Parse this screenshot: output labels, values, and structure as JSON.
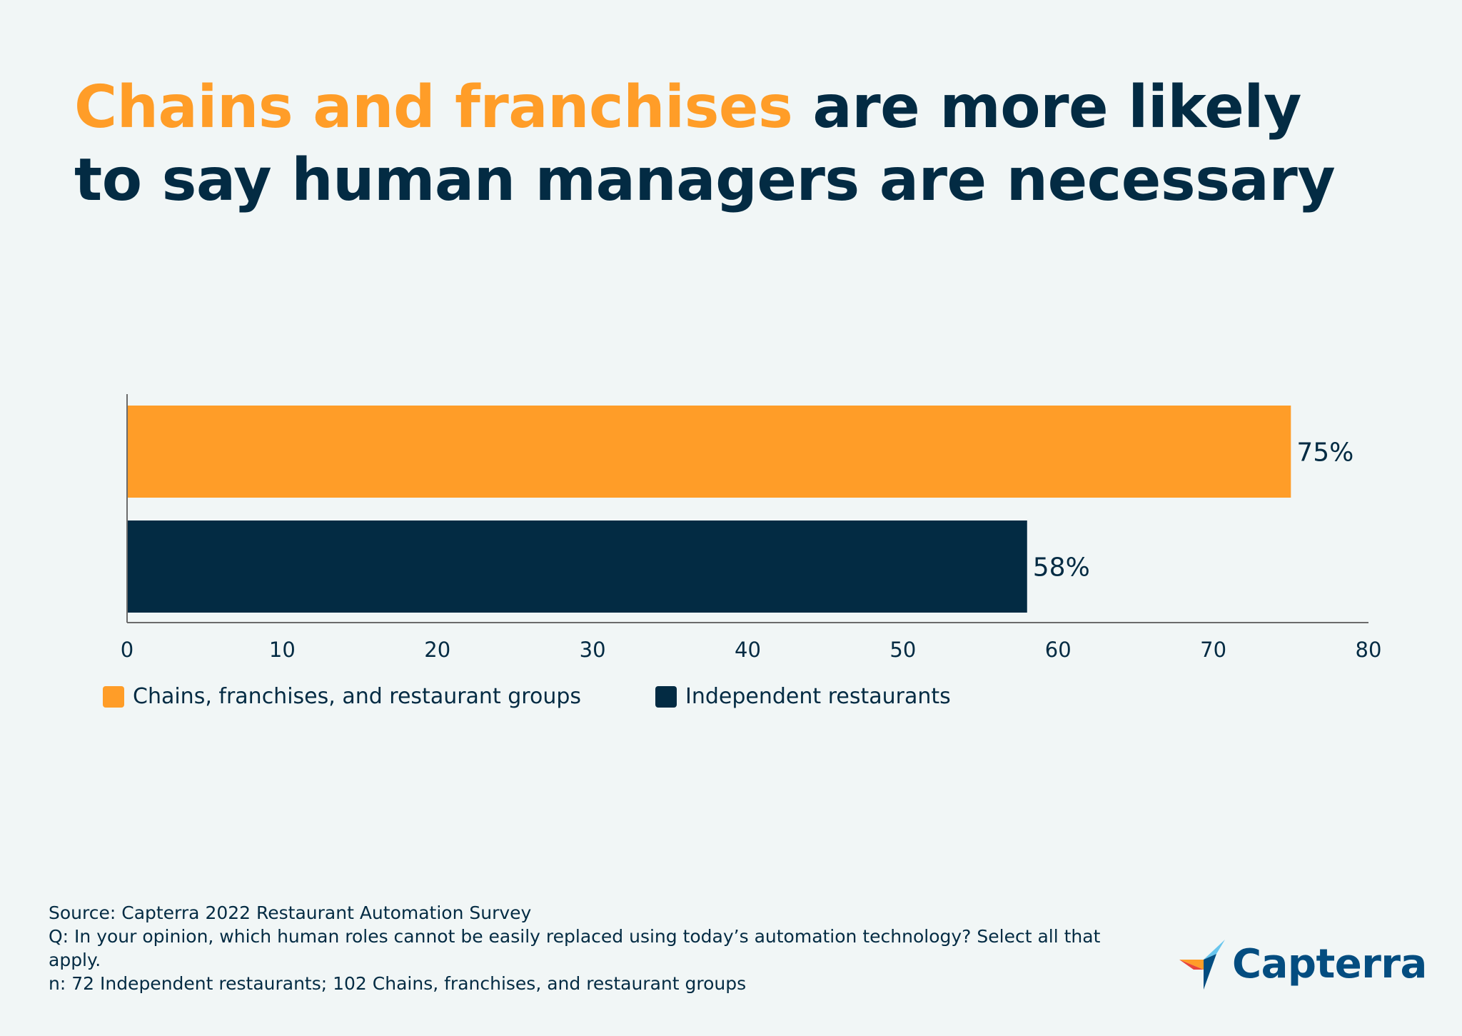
{
  "title": {
    "highlight": "Chains and franchises",
    "rest": "are more likely to say human managers are necessary"
  },
  "chart_data": {
    "type": "bar",
    "orientation": "horizontal",
    "categories": [
      "Chains, franchises, and restaurant groups",
      "Independent restaurants"
    ],
    "values": [
      75,
      58
    ],
    "value_labels": [
      "75%",
      "58%"
    ],
    "colors": [
      "#ff9d28",
      "#032b43"
    ],
    "xlim": [
      0,
      80
    ],
    "xticks": [
      0,
      10,
      20,
      30,
      40,
      50,
      60,
      70,
      80
    ],
    "xlabel": "",
    "ylabel": "",
    "grid": false,
    "legend_position": "bottom-left"
  },
  "legend": [
    {
      "label": "Chains, franchises, and restaurant groups",
      "color": "#ff9d28"
    },
    {
      "label": "Independent restaurants",
      "color": "#032b43"
    }
  ],
  "footnote": {
    "source": "Source: Capterra 2022 Restaurant Automation Survey",
    "question": "Q: In your opinion, which human roles cannot be easily replaced using today’s automation technology? Select all that apply.",
    "sample": "n: 72 Independent restaurants; 102 Chains, franchises, and restaurant groups"
  },
  "brand": {
    "name": "Capterra",
    "icon": "capterra-logo-icon"
  },
  "colors": {
    "background": "#f1f6f6",
    "orange": "#ff9d28",
    "navy": "#032b43",
    "brand_blue": "#044d80"
  }
}
